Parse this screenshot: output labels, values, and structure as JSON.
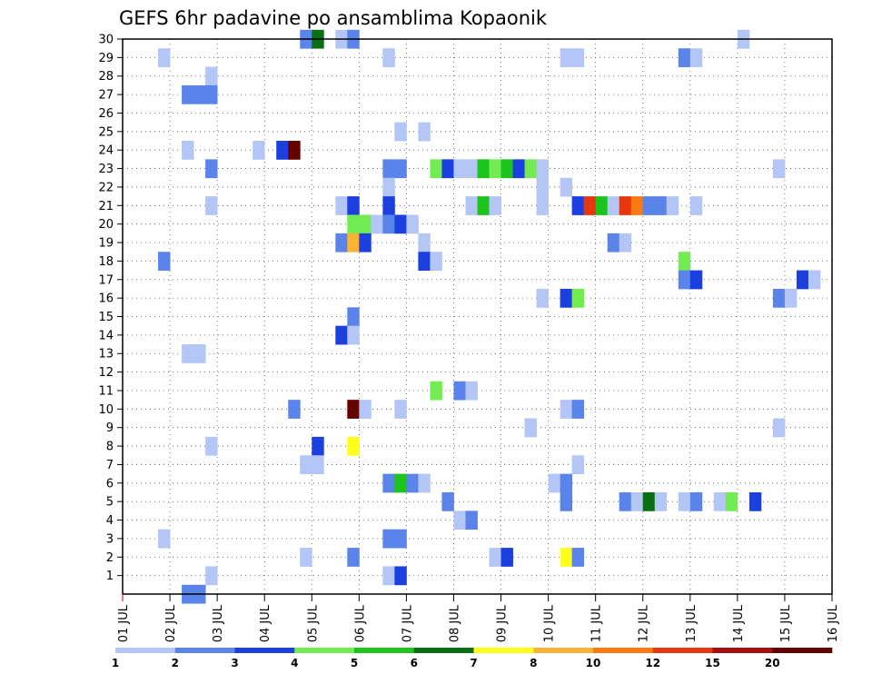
{
  "chart_data": {
    "type": "heatmap",
    "title": "GEFS 6hr padavine po ansamblima Kopaonik",
    "xlabel": "",
    "ylabel": "",
    "x_tick_labels": [
      "01 JUL",
      "02 JUL",
      "03 JUL",
      "04 JUL",
      "05 JUL",
      "06 JUL",
      "07 JUL",
      "08 JUL",
      "09 JUL",
      "10 JUL",
      "11 JUL",
      "12 JUL",
      "13 JUL",
      "14 JUL",
      "15 JUL",
      "16 JUL"
    ],
    "x_range_days": [
      1,
      16
    ],
    "y_tick_labels": [
      "1",
      "2",
      "3",
      "4",
      "5",
      "6",
      "7",
      "8",
      "9",
      "10",
      "11",
      "12",
      "13",
      "14",
      "15",
      "16",
      "17",
      "18",
      "19",
      "20",
      "21",
      "22",
      "23",
      "24",
      "25",
      "26",
      "27",
      "28",
      "29",
      "30"
    ],
    "y_range": [
      0,
      30
    ],
    "grid": true,
    "legend_placement": "bottom",
    "legend_thresholds": [
      "1",
      "2",
      "3",
      "4",
      "5",
      "6",
      "7",
      "8",
      "10",
      "12",
      "15",
      "20"
    ],
    "legend_colors": [
      "#b3c6f5",
      "#5b84ea",
      "#1c3fe0",
      "#72ec52",
      "#1cc41c",
      "#0a6e12",
      "#ffff1a",
      "#fcb232",
      "#f97a10",
      "#e8370f",
      "#a60f0f",
      "#650000"
    ],
    "cells_description": "each cell: [member, day (fractional, 0.25 = 6h), precipitation class index 0-11 per legend_colors]",
    "cells": [
      [
        30,
        5.0,
        1
      ],
      [
        30,
        5.25,
        5
      ],
      [
        30,
        5.75,
        0
      ],
      [
        30,
        6.0,
        1
      ],
      [
        30,
        14.25,
        0
      ],
      [
        29,
        2.0,
        0
      ],
      [
        29,
        6.75,
        0
      ],
      [
        29,
        10.5,
        0
      ],
      [
        29,
        10.75,
        0
      ],
      [
        29,
        13.0,
        1
      ],
      [
        29,
        13.25,
        0
      ],
      [
        28,
        3.0,
        0
      ],
      [
        27,
        2.5,
        1
      ],
      [
        27,
        2.75,
        1
      ],
      [
        27,
        3.0,
        1
      ],
      [
        25,
        7.0,
        0
      ],
      [
        25,
        7.5,
        0
      ],
      [
        24,
        2.5,
        0
      ],
      [
        24,
        4.0,
        0
      ],
      [
        24,
        4.5,
        2
      ],
      [
        24,
        4.75,
        11
      ],
      [
        23,
        3.0,
        1
      ],
      [
        23,
        6.75,
        1
      ],
      [
        23,
        7.0,
        1
      ],
      [
        23,
        7.75,
        3
      ],
      [
        23,
        8.0,
        2
      ],
      [
        23,
        8.25,
        0
      ],
      [
        23,
        8.5,
        0
      ],
      [
        23,
        8.75,
        4
      ],
      [
        23,
        9.0,
        3
      ],
      [
        23,
        9.25,
        4
      ],
      [
        23,
        9.5,
        2
      ],
      [
        23,
        9.75,
        3
      ],
      [
        23,
        10.0,
        0
      ],
      [
        23,
        15.0,
        0
      ],
      [
        22,
        6.75,
        0
      ],
      [
        22,
        10.0,
        0
      ],
      [
        22,
        10.5,
        0
      ],
      [
        21,
        3.0,
        0
      ],
      [
        21,
        5.75,
        0
      ],
      [
        21,
        6.0,
        2
      ],
      [
        21,
        6.75,
        2
      ],
      [
        21,
        8.5,
        0
      ],
      [
        21,
        8.75,
        4
      ],
      [
        21,
        9.0,
        0
      ],
      [
        21,
        10.0,
        0
      ],
      [
        21,
        10.75,
        2
      ],
      [
        21,
        11.0,
        9
      ],
      [
        21,
        11.25,
        4
      ],
      [
        21,
        11.5,
        0
      ],
      [
        21,
        11.75,
        9
      ],
      [
        21,
        12.0,
        8
      ],
      [
        21,
        12.25,
        1
      ],
      [
        21,
        12.5,
        1
      ],
      [
        21,
        12.75,
        0
      ],
      [
        21,
        13.25,
        0
      ],
      [
        20,
        6.0,
        3
      ],
      [
        20,
        6.25,
        3
      ],
      [
        20,
        6.5,
        0
      ],
      [
        20,
        6.75,
        1
      ],
      [
        20,
        7.0,
        2
      ],
      [
        20,
        7.25,
        0
      ],
      [
        19,
        5.75,
        1
      ],
      [
        19,
        6.0,
        7
      ],
      [
        19,
        6.25,
        2
      ],
      [
        19,
        7.5,
        0
      ],
      [
        19,
        11.5,
        1
      ],
      [
        19,
        11.75,
        0
      ],
      [
        18,
        2.0,
        1
      ],
      [
        18,
        7.5,
        2
      ],
      [
        18,
        7.75,
        0
      ],
      [
        18,
        13.0,
        3
      ],
      [
        17,
        13.0,
        1
      ],
      [
        17,
        13.25,
        2
      ],
      [
        17,
        15.5,
        2
      ],
      [
        17,
        15.75,
        0
      ],
      [
        16,
        10.0,
        0
      ],
      [
        16,
        10.5,
        2
      ],
      [
        16,
        10.75,
        3
      ],
      [
        16,
        15.0,
        1
      ],
      [
        16,
        15.25,
        0
      ],
      [
        15,
        6.0,
        1
      ],
      [
        14,
        5.75,
        2
      ],
      [
        14,
        6.0,
        0
      ],
      [
        13,
        2.5,
        0
      ],
      [
        13,
        2.75,
        0
      ],
      [
        11,
        7.75,
        3
      ],
      [
        11,
        8.25,
        1
      ],
      [
        11,
        8.5,
        0
      ],
      [
        10,
        4.75,
        1
      ],
      [
        10,
        6.0,
        11
      ],
      [
        10,
        6.25,
        0
      ],
      [
        10,
        7.0,
        0
      ],
      [
        10,
        10.5,
        0
      ],
      [
        10,
        10.75,
        1
      ],
      [
        9,
        9.75,
        0
      ],
      [
        9,
        15.0,
        0
      ],
      [
        8,
        3.0,
        0
      ],
      [
        8,
        5.25,
        2
      ],
      [
        8,
        6.0,
        6
      ],
      [
        7,
        5.0,
        0
      ],
      [
        7,
        5.25,
        0
      ],
      [
        7,
        10.75,
        0
      ],
      [
        6,
        6.75,
        1
      ],
      [
        6,
        7.0,
        4
      ],
      [
        6,
        7.25,
        1
      ],
      [
        6,
        7.5,
        0
      ],
      [
        6,
        10.25,
        0
      ],
      [
        6,
        10.5,
        1
      ],
      [
        5,
        8.0,
        1
      ],
      [
        5,
        10.5,
        1
      ],
      [
        5,
        11.75,
        1
      ],
      [
        5,
        12.0,
        0
      ],
      [
        5,
        12.25,
        5
      ],
      [
        5,
        12.5,
        0
      ],
      [
        5,
        13.0,
        0
      ],
      [
        5,
        13.25,
        1
      ],
      [
        5,
        13.75,
        0
      ],
      [
        5,
        14.0,
        3
      ],
      [
        5,
        14.5,
        2
      ],
      [
        4,
        8.25,
        0
      ],
      [
        4,
        8.5,
        1
      ],
      [
        3,
        2.0,
        0
      ],
      [
        3,
        6.75,
        1
      ],
      [
        3,
        7.0,
        1
      ],
      [
        2,
        5.0,
        0
      ],
      [
        2,
        6.0,
        1
      ],
      [
        2,
        9.0,
        0
      ],
      [
        2,
        9.25,
        2
      ],
      [
        2,
        10.5,
        6
      ],
      [
        2,
        10.75,
        1
      ],
      [
        1,
        3.0,
        0
      ],
      [
        1,
        6.75,
        0
      ],
      [
        1,
        7.0,
        2
      ],
      [
        0,
        2.5,
        1
      ],
      [
        0,
        2.75,
        1
      ]
    ]
  }
}
